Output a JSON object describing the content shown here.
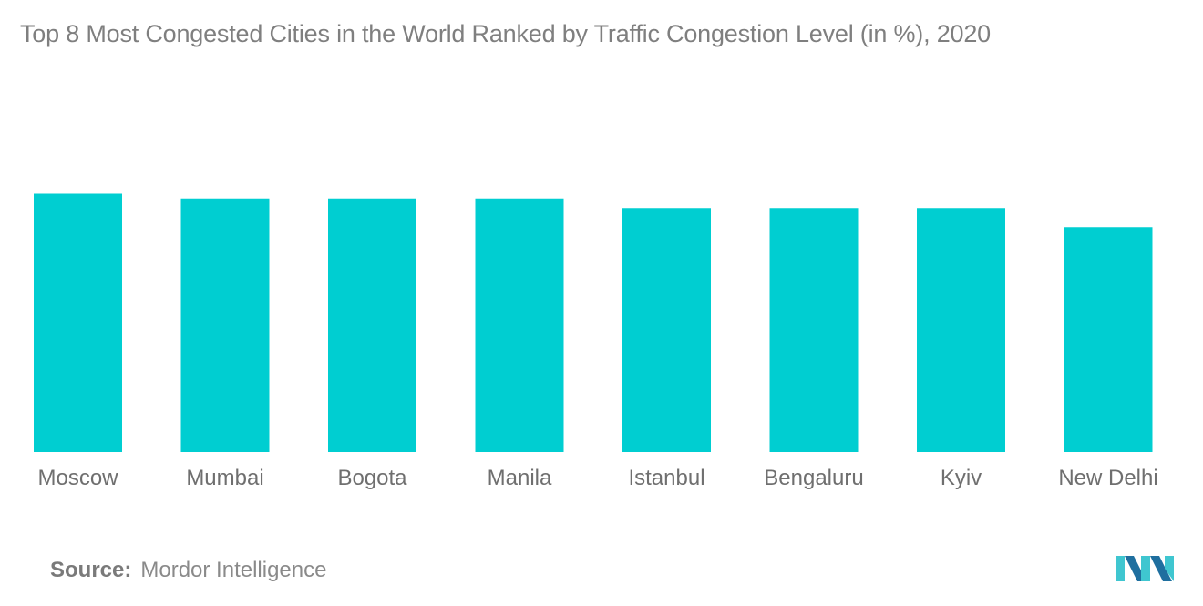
{
  "title": "Top 8 Most Congested Cities in the World Ranked by Traffic Congestion Level (in %), 2020",
  "source": {
    "label": "Source:",
    "value": "Mordor Intelligence"
  },
  "colors": {
    "bar": "#00ced1",
    "logo_dark": "#1f6f9f",
    "logo_light": "#3fc6d0"
  },
  "logo": {
    "icon": "mordor-intelligence-logo-icon"
  },
  "chart_data": {
    "type": "bar",
    "title": "Top 8 Most Congested Cities in the World Ranked by Traffic Congestion Level (in %), 2020",
    "xlabel": "",
    "ylabel": "",
    "categories": [
      "Moscow",
      "Mumbai",
      "Bogota",
      "Manila",
      "Istanbul",
      "Bengaluru",
      "Kyiv",
      "New Delhi"
    ],
    "values": [
      54,
      53,
      53,
      53,
      51,
      51,
      51,
      47
    ],
    "ylim": [
      0,
      60
    ],
    "grid": false,
    "legend": "none"
  }
}
